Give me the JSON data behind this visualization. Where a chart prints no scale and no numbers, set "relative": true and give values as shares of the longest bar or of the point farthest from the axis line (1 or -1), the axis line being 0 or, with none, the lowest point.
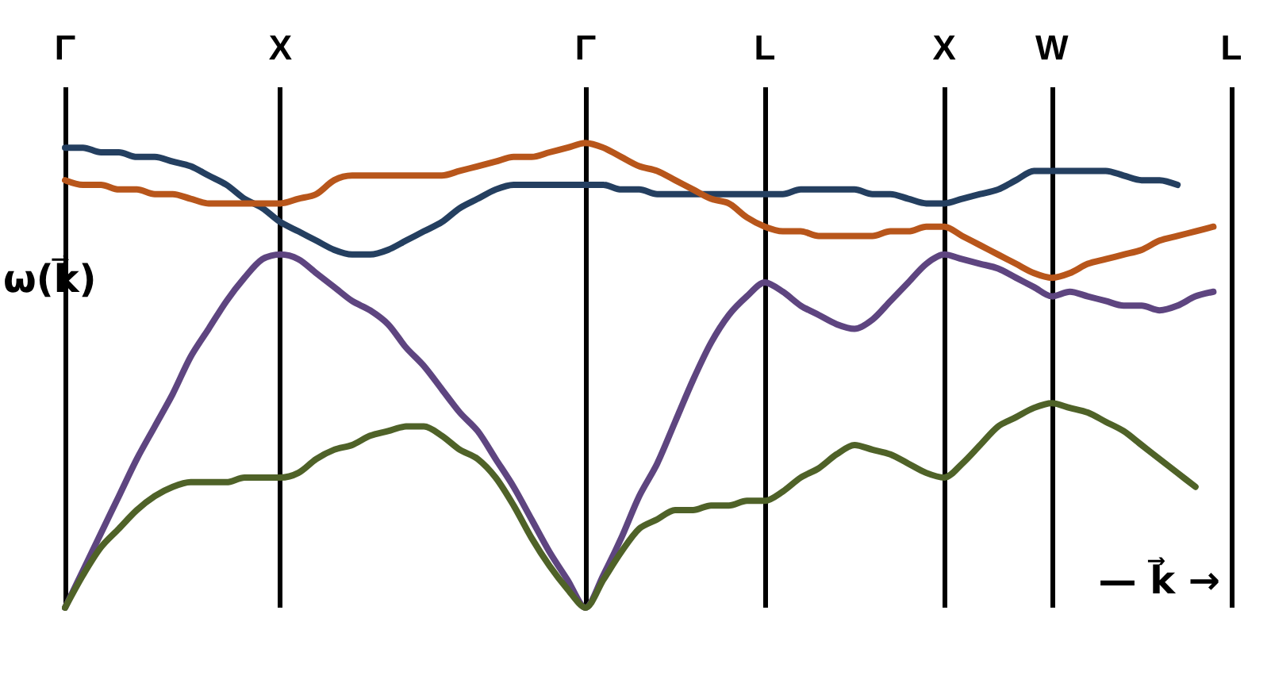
{
  "chart_data": {
    "type": "line",
    "relative": true,
    "categories": [
      "Γ",
      null,
      null,
      null,
      null,
      null,
      null,
      null,
      null,
      null,
      null,
      null,
      "X",
      null,
      null,
      null,
      null,
      null,
      null,
      null,
      null,
      null,
      null,
      null,
      null,
      null,
      null,
      null,
      null,
      "Γ",
      null,
      null,
      null,
      null,
      null,
      null,
      null,
      null,
      null,
      "L",
      null,
      null,
      null,
      null,
      null,
      null,
      null,
      null,
      null,
      "X",
      null,
      null,
      null,
      null,
      null,
      "W",
      null,
      null,
      null,
      null,
      null,
      null,
      null,
      null,
      null,
      "L"
    ],
    "grid": "x",
    "marker": "none",
    "line_style": "solid",
    "annotations": [
      "ω(k⃗)",
      "— k⃗ →"
    ],
    "series": [
      {
        "color": "#243f60",
        "values": [
          0.99,
          0.99,
          0.98,
          0.98,
          0.97,
          0.97,
          0.96,
          0.95,
          0.93,
          0.91,
          0.88,
          0.86,
          0.83,
          0.81,
          0.79,
          0.77,
          0.76,
          0.76,
          0.77,
          0.79,
          0.81,
          0.83,
          0.86,
          0.88,
          0.9,
          0.91,
          0.91,
          0.91,
          0.91,
          0.91,
          0.91,
          0.9,
          0.9,
          0.89,
          0.89,
          0.89,
          0.89,
          0.89,
          0.89,
          0.89,
          0.89,
          0.9,
          0.9,
          0.9,
          0.9,
          0.89,
          0.89,
          0.88,
          0.87,
          0.87,
          0.88,
          0.89,
          0.9,
          0.92,
          0.94,
          0.94,
          0.94,
          0.94,
          0.94,
          0.93,
          0.92,
          0.92,
          0.91,
          null,
          null,
          null
        ]
      },
      {
        "color": "#b8561b",
        "values": [
          0.92,
          0.91,
          0.91,
          0.9,
          0.9,
          0.89,
          0.89,
          0.88,
          0.87,
          0.87,
          0.87,
          0.87,
          0.87,
          0.88,
          0.89,
          0.92,
          0.93,
          0.93,
          0.93,
          0.93,
          0.93,
          0.93,
          0.94,
          0.95,
          0.96,
          0.97,
          0.97,
          0.98,
          0.99,
          1,
          0.99,
          0.97,
          0.95,
          0.94,
          0.92,
          0.9,
          0.88,
          0.87,
          0.84,
          0.82,
          0.81,
          0.81,
          0.8,
          0.8,
          0.8,
          0.8,
          0.81,
          0.81,
          0.82,
          0.82,
          0.8,
          0.78,
          0.76,
          0.74,
          0.72,
          0.71,
          0.72,
          0.74,
          0.75,
          0.76,
          0.77,
          0.79,
          0.8,
          0.81,
          0.82,
          null
        ]
      },
      {
        "color": "#5e4580",
        "values": [
          0,
          0.08,
          0.16,
          0.24,
          0.32,
          0.39,
          0.46,
          0.54,
          0.6,
          0.66,
          0.71,
          0.75,
          0.76,
          0.75,
          0.72,
          0.69,
          0.66,
          0.64,
          0.61,
          0.56,
          0.52,
          0.47,
          0.42,
          0.38,
          0.32,
          0.26,
          0.19,
          0.12,
          0.06,
          0,
          0.07,
          0.15,
          0.24,
          0.31,
          0.4,
          0.49,
          0.57,
          0.63,
          0.67,
          0.7,
          0.68,
          0.65,
          0.63,
          0.61,
          0.6,
          0.62,
          0.66,
          0.7,
          0.74,
          0.76,
          0.75,
          0.74,
          0.73,
          0.71,
          0.69,
          0.67,
          0.68,
          0.67,
          0.66,
          0.65,
          0.65,
          0.64,
          0.65,
          0.67,
          0.68,
          null
        ]
      },
      {
        "color": "#4f6228",
        "values": [
          0,
          0.07,
          0.13,
          0.17,
          0.21,
          0.24,
          0.26,
          0.27,
          0.27,
          0.27,
          0.28,
          0.28,
          0.28,
          0.29,
          0.32,
          0.34,
          0.35,
          0.37,
          0.38,
          0.39,
          0.39,
          0.37,
          0.34,
          0.32,
          0.28,
          0.22,
          0.15,
          0.09,
          0.04,
          0,
          0.06,
          0.12,
          0.17,
          0.19,
          0.21,
          0.21,
          0.22,
          0.22,
          0.23,
          0.23,
          0.25,
          0.28,
          0.3,
          0.33,
          0.35,
          0.34,
          0.33,
          0.31,
          0.29,
          0.28,
          0.31,
          0.35,
          0.39,
          0.41,
          0.43,
          0.44,
          0.43,
          0.42,
          0.4,
          0.38,
          0.35,
          0.32,
          0.29,
          0.26,
          null,
          null
        ]
      }
    ]
  }
}
